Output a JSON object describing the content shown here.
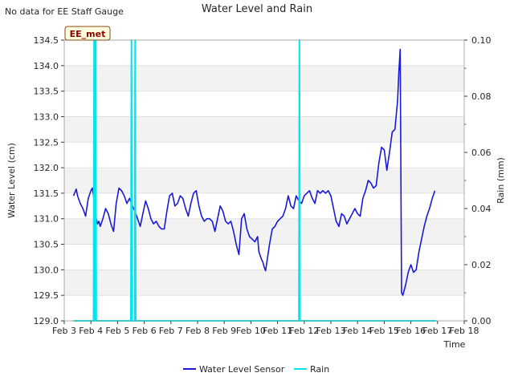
{
  "header": {
    "note": "No data for EE Staff Gauge",
    "title": "Water Level and Rain"
  },
  "station_badge": "EE_met",
  "chart_data": {
    "type": "line",
    "title": "Water Level and Rain",
    "xlabel": "Time",
    "ylabel_left": "Water Level (cm)",
    "ylabel_right": "Rain (mm)",
    "x_ticks": [
      "Feb 3",
      "Feb 4",
      "Feb 5",
      "Feb 6",
      "Feb 7",
      "Feb 8",
      "Feb 9",
      "Feb 10",
      "Feb 11",
      "Feb 12",
      "Feb 13",
      "Feb 14",
      "Feb 15",
      "Feb 16",
      "Feb 17",
      "Feb 18"
    ],
    "x_range_days": [
      3,
      18
    ],
    "ylim_left": [
      129.0,
      134.5
    ],
    "ylim_right": [
      0.0,
      0.1
    ],
    "y_ticks_left": [
      "129.0",
      "129.5",
      "130.0",
      "130.5",
      "131.0",
      "131.5",
      "132.0",
      "132.5",
      "133.0",
      "133.5",
      "134.0",
      "134.5"
    ],
    "y_ticks_right": [
      "0.00",
      "0.02",
      "0.04",
      "0.06",
      "0.08",
      "0.10"
    ],
    "background": "alternating grey bands",
    "legend_position": "bottom-center",
    "series": [
      {
        "name": "Water Level Sensor",
        "axis": "left",
        "color": "#1a1ad6",
        "points": [
          [
            3.35,
            131.45
          ],
          [
            3.45,
            131.58
          ],
          [
            3.5,
            131.45
          ],
          [
            3.6,
            131.3
          ],
          [
            3.7,
            131.2
          ],
          [
            3.8,
            131.05
          ],
          [
            3.9,
            131.4
          ],
          [
            4.0,
            131.55
          ],
          [
            4.05,
            131.6
          ],
          [
            4.1,
            131.45
          ],
          [
            4.15,
            131.2
          ],
          [
            4.2,
            131.0
          ],
          [
            4.25,
            130.9
          ],
          [
            4.3,
            130.95
          ],
          [
            4.35,
            130.85
          ],
          [
            4.45,
            131.0
          ],
          [
            4.55,
            131.2
          ],
          [
            4.65,
            131.1
          ],
          [
            4.75,
            130.9
          ],
          [
            4.85,
            130.75
          ],
          [
            4.95,
            131.3
          ],
          [
            5.05,
            131.6
          ],
          [
            5.15,
            131.55
          ],
          [
            5.25,
            131.45
          ],
          [
            5.35,
            131.3
          ],
          [
            5.45,
            131.4
          ],
          [
            5.55,
            131.25
          ],
          [
            5.65,
            131.15
          ],
          [
            5.75,
            131.0
          ],
          [
            5.85,
            130.85
          ],
          [
            5.95,
            131.1
          ],
          [
            6.05,
            131.35
          ],
          [
            6.15,
            131.2
          ],
          [
            6.25,
            131.0
          ],
          [
            6.35,
            130.9
          ],
          [
            6.45,
            130.95
          ],
          [
            6.55,
            130.85
          ],
          [
            6.65,
            130.8
          ],
          [
            6.75,
            130.8
          ],
          [
            6.85,
            131.15
          ],
          [
            6.95,
            131.45
          ],
          [
            7.05,
            131.5
          ],
          [
            7.15,
            131.25
          ],
          [
            7.25,
            131.3
          ],
          [
            7.35,
            131.45
          ],
          [
            7.45,
            131.4
          ],
          [
            7.55,
            131.2
          ],
          [
            7.65,
            131.05
          ],
          [
            7.75,
            131.3
          ],
          [
            7.85,
            131.5
          ],
          [
            7.95,
            131.55
          ],
          [
            8.05,
            131.25
          ],
          [
            8.15,
            131.05
          ],
          [
            8.25,
            130.95
          ],
          [
            8.35,
            131.0
          ],
          [
            8.45,
            131.0
          ],
          [
            8.55,
            130.95
          ],
          [
            8.65,
            130.75
          ],
          [
            8.75,
            131.0
          ],
          [
            8.85,
            131.25
          ],
          [
            8.95,
            131.15
          ],
          [
            9.05,
            130.95
          ],
          [
            9.15,
            130.9
          ],
          [
            9.25,
            130.95
          ],
          [
            9.35,
            130.75
          ],
          [
            9.45,
            130.5
          ],
          [
            9.55,
            130.3
          ],
          [
            9.65,
            131.0
          ],
          [
            9.75,
            131.1
          ],
          [
            9.85,
            130.8
          ],
          [
            9.95,
            130.65
          ],
          [
            10.05,
            130.6
          ],
          [
            10.15,
            130.55
          ],
          [
            10.25,
            130.65
          ],
          [
            10.3,
            130.35
          ],
          [
            10.4,
            130.2
          ],
          [
            10.45,
            130.15
          ],
          [
            10.5,
            130.05
          ],
          [
            10.55,
            129.98
          ],
          [
            10.6,
            130.15
          ],
          [
            10.7,
            130.5
          ],
          [
            10.8,
            130.8
          ],
          [
            10.9,
            130.85
          ],
          [
            11.0,
            130.95
          ],
          [
            11.1,
            131.0
          ],
          [
            11.2,
            131.05
          ],
          [
            11.3,
            131.2
          ],
          [
            11.4,
            131.45
          ],
          [
            11.5,
            131.25
          ],
          [
            11.6,
            131.2
          ],
          [
            11.7,
            131.45
          ],
          [
            11.8,
            131.35
          ],
          [
            11.9,
            131.3
          ],
          [
            12.0,
            131.45
          ],
          [
            12.1,
            131.5
          ],
          [
            12.2,
            131.55
          ],
          [
            12.3,
            131.4
          ],
          [
            12.4,
            131.3
          ],
          [
            12.5,
            131.55
          ],
          [
            12.6,
            131.5
          ],
          [
            12.7,
            131.55
          ],
          [
            12.8,
            131.5
          ],
          [
            12.9,
            131.55
          ],
          [
            13.0,
            131.45
          ],
          [
            13.1,
            131.2
          ],
          [
            13.2,
            130.95
          ],
          [
            13.3,
            130.85
          ],
          [
            13.4,
            131.1
          ],
          [
            13.5,
            131.05
          ],
          [
            13.6,
            130.9
          ],
          [
            13.7,
            131.0
          ],
          [
            13.8,
            131.1
          ],
          [
            13.9,
            131.2
          ],
          [
            14.0,
            131.1
          ],
          [
            14.1,
            131.05
          ],
          [
            14.2,
            131.4
          ],
          [
            14.3,
            131.55
          ],
          [
            14.4,
            131.75
          ],
          [
            14.5,
            131.7
          ],
          [
            14.6,
            131.6
          ],
          [
            14.7,
            131.65
          ],
          [
            14.8,
            132.1
          ],
          [
            14.9,
            132.4
          ],
          [
            15.0,
            132.35
          ],
          [
            15.1,
            131.95
          ],
          [
            15.2,
            132.3
          ],
          [
            15.3,
            132.7
          ],
          [
            15.4,
            132.75
          ],
          [
            15.5,
            133.3
          ],
          [
            15.55,
            133.9
          ],
          [
            15.6,
            134.32
          ],
          [
            15.65,
            129.55
          ],
          [
            15.7,
            129.5
          ],
          [
            15.8,
            129.7
          ],
          [
            15.9,
            129.95
          ],
          [
            16.0,
            130.1
          ],
          [
            16.1,
            129.95
          ],
          [
            16.2,
            130.0
          ],
          [
            16.3,
            130.35
          ],
          [
            16.4,
            130.6
          ],
          [
            16.5,
            130.85
          ],
          [
            16.6,
            131.05
          ],
          [
            16.7,
            131.2
          ],
          [
            16.8,
            131.4
          ],
          [
            16.9,
            131.55
          ]
        ]
      },
      {
        "name": "Rain",
        "axis": "right",
        "color": "#00e5ee",
        "points": [
          [
            3.35,
            0
          ],
          [
            4.1,
            0
          ],
          [
            4.12,
            0.1
          ],
          [
            4.14,
            0
          ],
          [
            4.18,
            0.1
          ],
          [
            4.2,
            0
          ],
          [
            5.5,
            0
          ],
          [
            5.52,
            0.1
          ],
          [
            5.54,
            0
          ],
          [
            5.64,
            0
          ],
          [
            5.66,
            0.1
          ],
          [
            5.68,
            0
          ],
          [
            11.8,
            0
          ],
          [
            11.82,
            0.1
          ],
          [
            11.84,
            0
          ],
          [
            16.95,
            0
          ]
        ]
      }
    ]
  }
}
